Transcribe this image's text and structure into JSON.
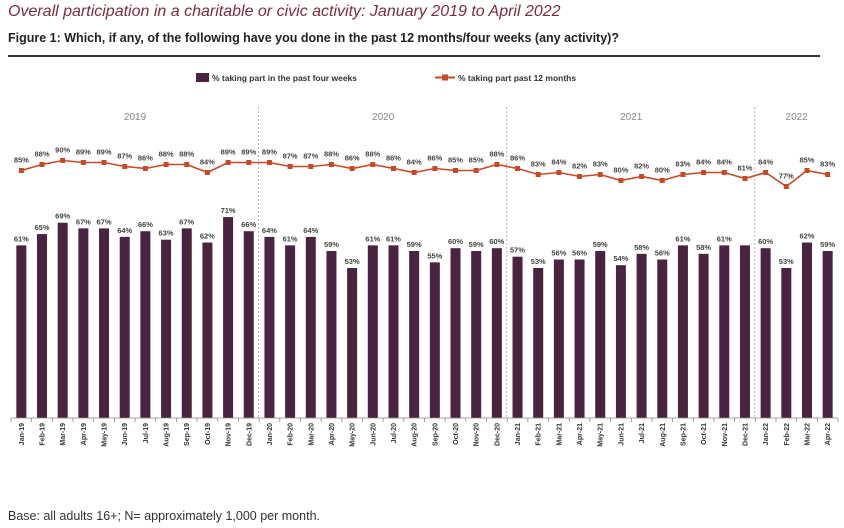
{
  "page": {
    "title": "Overall participation in a charitable or civic activity: January 2019 to April 2022",
    "figure_title": "Figure 1: Which, if any, of the following have you done in the past 12 months/four weeks (any activity)?",
    "footnote": "Base: all adults 16+; N= approximately 1,000 per month."
  },
  "colors": {
    "bar": "#4a2340",
    "line": "#c84a24",
    "divider": "#aaaaaa",
    "title": "#7b2c3a"
  },
  "chart_data": {
    "type": "bar",
    "categories": [
      "Jan-19",
      "Feb-19",
      "Mar-19",
      "Apr-19",
      "May-19",
      "Jun-19",
      "Jul-19",
      "Aug-19",
      "Sep-19",
      "Oct-19",
      "Nov-19",
      "Dec-19",
      "Jan-20",
      "Feb-20",
      "Mar-20",
      "Apr-20",
      "May-20",
      "Jun-20",
      "Jul-20",
      "Aug-20",
      "Sep-20",
      "Oct-20",
      "Nov-20",
      "Dec-20",
      "Jan-21",
      "Feb-21",
      "Mar-21",
      "Apr-21",
      "May-21",
      "Jun-21",
      "Jul-21",
      "Aug-21",
      "Sep-21",
      "Oct-21",
      "Nov-21",
      "Dec-21",
      "Jan-22",
      "Feb-22",
      "Mar-22",
      "Apr-22"
    ],
    "series": [
      {
        "name": "% taking part in the past four weeks",
        "type": "bar",
        "values": [
          61,
          65,
          69,
          67,
          67,
          64,
          66,
          63,
          67,
          62,
          71,
          66,
          64,
          61,
          64,
          59,
          53,
          61,
          61,
          59,
          55,
          60,
          59,
          60,
          57,
          53,
          56,
          56,
          59,
          54,
          58,
          56,
          61,
          58,
          61,
          61,
          60,
          53,
          62,
          59
        ],
        "labels": [
          "61%",
          "65%",
          "69%",
          "67%",
          "67%",
          "64%",
          "66%",
          "63%",
          "67%",
          "62%",
          "71%",
          "66%",
          "64%",
          "61%",
          "64%",
          "59%",
          "53%",
          "61%",
          "61%",
          "59%",
          "55%",
          "60%",
          "59%",
          "60%",
          "57%",
          "53%",
          "56%",
          "56%",
          "59%",
          "54%",
          "58%",
          "56%",
          "61%",
          "58%",
          "61%",
          "",
          "60%",
          "53%",
          "62%",
          "59%"
        ]
      },
      {
        "name": "% taking part past 12 months",
        "type": "line",
        "values": [
          85,
          88,
          90,
          89,
          89,
          87,
          86,
          88,
          88,
          84,
          89,
          89,
          89,
          87,
          87,
          88,
          86,
          88,
          86,
          84,
          86,
          85,
          85,
          88,
          86,
          83,
          84,
          82,
          83,
          80,
          82,
          80,
          83,
          84,
          84,
          81,
          84,
          77,
          85,
          83
        ],
        "labels": [
          "85%",
          "88%",
          "90%",
          "89%",
          "89%",
          "87%",
          "86%",
          "88%",
          "88%",
          "84%",
          "89%",
          "89%",
          "89%",
          "87%",
          "87%",
          "88%",
          "86%",
          "88%",
          "86%",
          "84%",
          "86%",
          "85%",
          "85%",
          "88%",
          "86%",
          "83%",
          "84%",
          "82%",
          "83%",
          "80%",
          "82%",
          "80%",
          "83%",
          "84%",
          "84%",
          "81%",
          "84%",
          "77%",
          "85%",
          "83%"
        ]
      }
    ],
    "year_groups": [
      {
        "label": "2019",
        "start": 0,
        "end": 11
      },
      {
        "label": "2020",
        "start": 12,
        "end": 23
      },
      {
        "label": "2021",
        "start": 24,
        "end": 35
      },
      {
        "label": "2022",
        "start": 36,
        "end": 39
      }
    ],
    "ylim": [
      0,
      100
    ],
    "legend": "top-center",
    "grid": false
  }
}
